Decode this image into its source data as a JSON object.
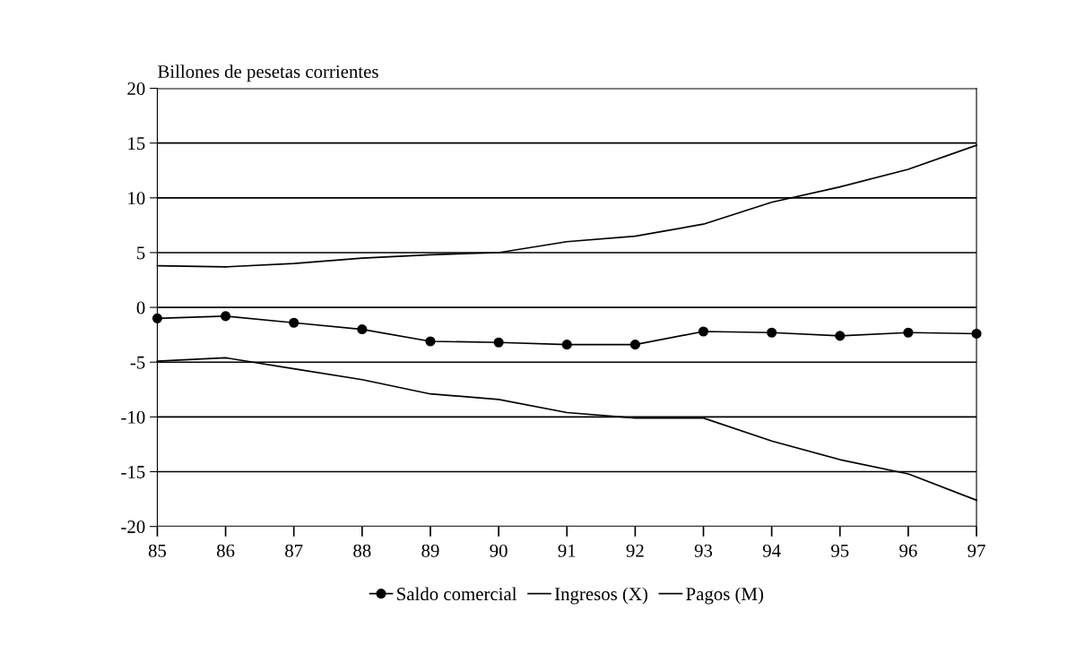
{
  "chart_data": {
    "type": "line",
    "ylabel": "Billones de pesetas corrientes",
    "categories": [
      "85",
      "86",
      "87",
      "88",
      "89",
      "90",
      "91",
      "92",
      "93",
      "94",
      "95",
      "96",
      "97"
    ],
    "series": [
      {
        "name": "Saldo comercial",
        "color": "#000000",
        "marker": "circle",
        "values": [
          -1.0,
          -0.8,
          -1.4,
          -2.0,
          -3.1,
          -3.2,
          -3.4,
          -3.4,
          -2.2,
          -2.3,
          -2.6,
          -2.3,
          -2.4
        ]
      },
      {
        "name": "Ingresos (X)",
        "color": "#000000",
        "marker": "none",
        "values": [
          3.8,
          3.7,
          4.0,
          4.5,
          4.8,
          5.0,
          6.0,
          6.5,
          7.6,
          9.6,
          11.0,
          12.6,
          14.8
        ]
      },
      {
        "name": "Pagos (M)",
        "color": "#000000",
        "marker": "none",
        "values": [
          -4.9,
          -4.6,
          -5.6,
          -6.6,
          -7.9,
          -8.4,
          -9.6,
          -10.1,
          -10.1,
          -12.2,
          -13.9,
          -15.2,
          -17.6
        ]
      }
    ],
    "ylim": [
      -20,
      20
    ],
    "yticks": [
      -20,
      -15,
      -10,
      -5,
      0,
      5,
      10,
      15,
      20
    ],
    "grid": "y",
    "legend": "bottom",
    "line_style": "solid"
  }
}
